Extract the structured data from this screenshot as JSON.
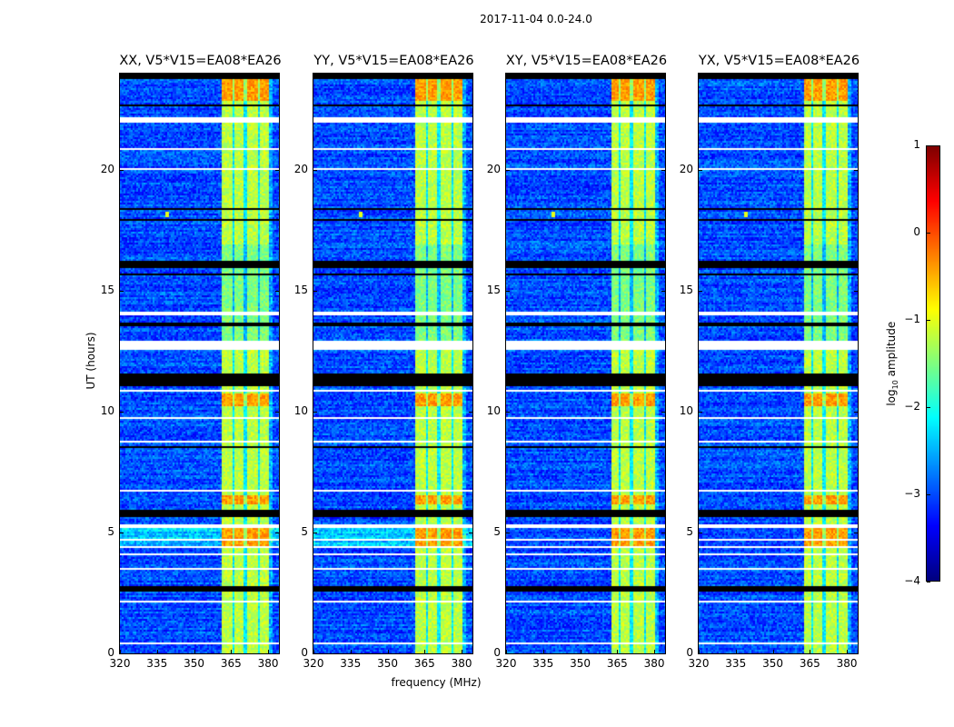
{
  "suptitle": "2017-11-04 0.0-24.0",
  "xlabel": "frequency (MHz)",
  "ylabel": "UT (hours)",
  "colorbar": {
    "label_prefix": "log",
    "label_sub": "10",
    "label_suffix": " amplitude",
    "range": [
      -4,
      1
    ],
    "ticks": [
      "1",
      "0",
      "−1",
      "−2",
      "−3",
      "−4"
    ],
    "tick_values": [
      1,
      0,
      -1,
      -2,
      -3,
      -4
    ],
    "colormap": "jet"
  },
  "panels": [
    {
      "title": "XX, V5*V15=EA08*EA26"
    },
    {
      "title": "YY, V5*V15=EA08*EA26"
    },
    {
      "title": "XY, V5*V15=EA08*EA26"
    },
    {
      "title": "YX, V5*V15=EA08*EA26"
    }
  ],
  "chart_data": {
    "type": "heatmap",
    "title": "2017-11-04 0.0-24.0",
    "xlabel": "frequency (MHz)",
    "ylabel": "UT (hours)",
    "xlim": [
      320,
      384.4
    ],
    "ylim": [
      0,
      24
    ],
    "xticks": [
      320,
      335,
      350,
      365,
      380
    ],
    "xtick_labels": [
      "320",
      "335",
      "350",
      "365",
      "380"
    ],
    "yticks": [
      0,
      5,
      10,
      15,
      20
    ],
    "ytick_labels": [
      "0",
      "5",
      "10",
      "15",
      "20"
    ],
    "background_log_amplitude": -3.0,
    "rfi_band_mhz": [
      360.7,
      380.3
    ],
    "rfi_band_log_amplitude": -1.2,
    "rfi_band_dark_channels_mhz": [
      365.7,
      370.6,
      376.0
    ],
    "strong_rfi_hours": [
      [
        22.9,
        23.8
      ],
      [
        10.3,
        10.8
      ],
      [
        6.2,
        6.6
      ],
      [
        4.5,
        5.2
      ]
    ],
    "flagged_white_hours": [
      [
        22.0,
        22.25
      ],
      [
        20.85,
        20.95
      ],
      [
        20.05,
        20.15
      ],
      [
        14.05,
        14.15
      ],
      [
        12.6,
        13.0
      ],
      [
        10.85,
        10.95
      ],
      [
        9.75,
        9.85
      ],
      [
        8.75,
        8.85
      ],
      [
        6.7,
        6.8
      ],
      [
        5.25,
        5.35
      ],
      [
        4.7,
        4.75
      ],
      [
        4.4,
        4.45
      ],
      [
        4.1,
        4.15
      ],
      [
        3.5,
        3.6
      ],
      [
        2.15,
        2.2
      ],
      [
        1.45,
        1.5
      ],
      [
        0.45,
        0.5
      ]
    ],
    "dark_hours": [
      [
        23.8,
        24.0
      ],
      [
        22.7,
        22.75
      ],
      [
        18.4,
        18.5
      ],
      [
        17.95,
        18.05
      ],
      [
        15.95,
        16.3
      ],
      [
        15.7,
        15.75
      ],
      [
        13.6,
        13.75
      ],
      [
        11.1,
        11.6
      ],
      [
        8.55,
        8.65
      ],
      [
        5.7,
        6.0
      ],
      [
        2.6,
        2.8
      ]
    ],
    "point_source": {
      "freq_mhz": 339,
      "hour": 18.2
    }
  }
}
